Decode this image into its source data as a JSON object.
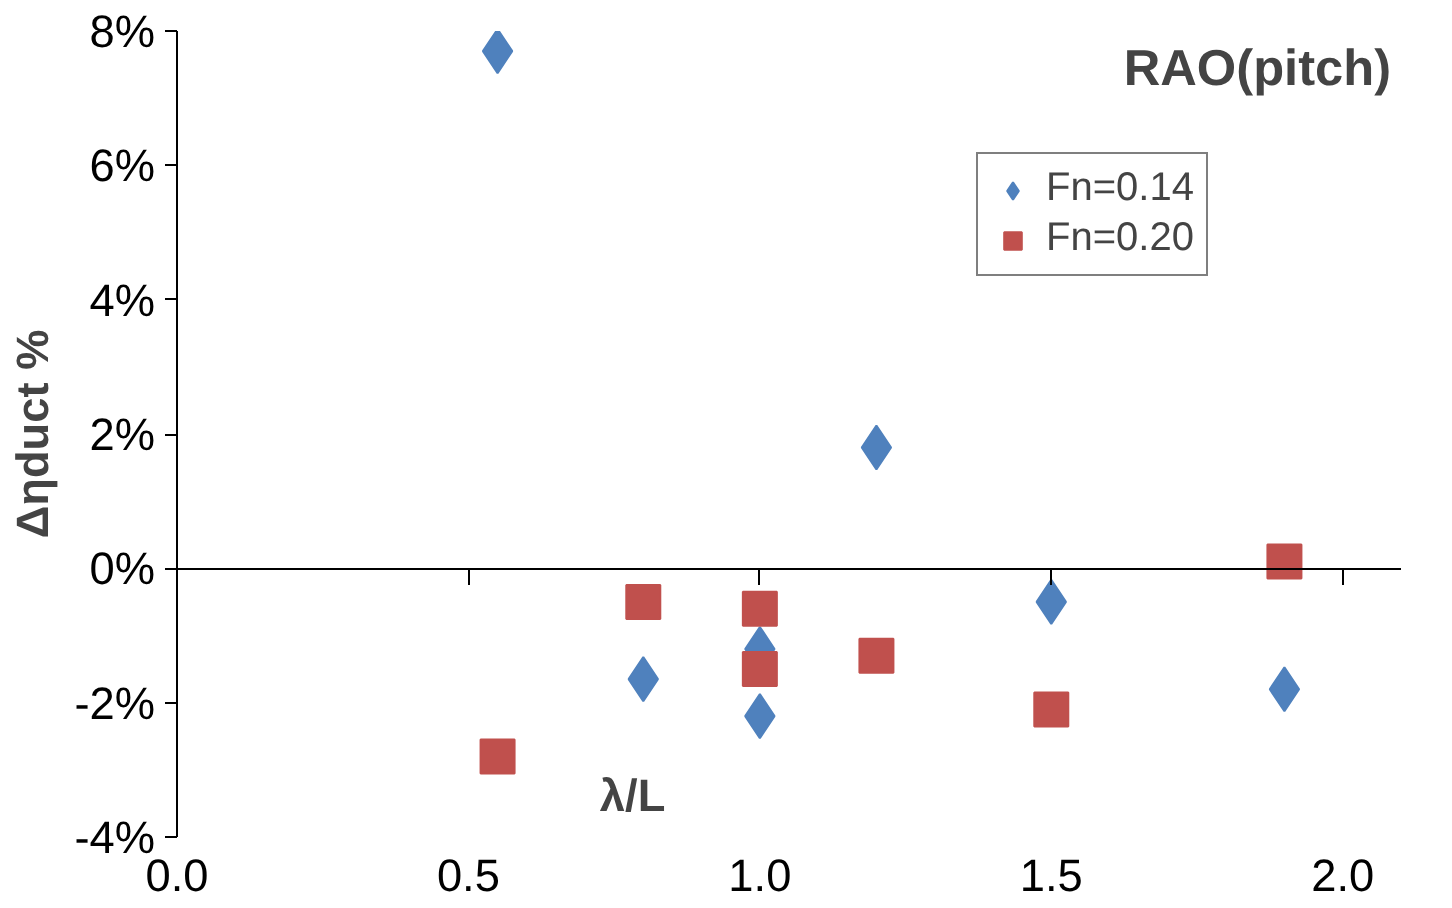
{
  "chart_data": {
    "type": "scatter",
    "title": "RAO(pitch)",
    "xlabel": "λ/L",
    "ylabel": "Δηduct %",
    "xlim": [
      0,
      2.1
    ],
    "xticks": [
      {
        "value": 0,
        "label": "0.0"
      },
      {
        "value": 0.5,
        "label": "0.5"
      },
      {
        "value": 1,
        "label": "1.0"
      },
      {
        "value": 1.5,
        "label": "1.5"
      },
      {
        "value": 2,
        "label": "2.0"
      }
    ],
    "ylim": [
      -4,
      8
    ],
    "yticks": [
      {
        "value": -4,
        "label": "-4%"
      },
      {
        "value": -2,
        "label": "-2%"
      },
      {
        "value": 0,
        "label": "0%"
      },
      {
        "value": 2,
        "label": "2%"
      },
      {
        "value": 4,
        "label": "4%"
      },
      {
        "value": 6,
        "label": "6%"
      },
      {
        "value": 8,
        "label": "8%"
      }
    ],
    "legend": "top right",
    "series": [
      {
        "name": "Fn=0.14",
        "color": "#4f81bd",
        "marker": "diamond",
        "x": [
          0.55,
          0.8,
          1.0,
          1.0,
          1.2,
          1.5,
          1.9
        ],
        "values": [
          7.7,
          -1.65,
          -2.2,
          -1.2,
          1.8,
          -0.5,
          -1.8
        ]
      },
      {
        "name": "Fn=0.20",
        "color": "#c0504d",
        "marker": "square",
        "x": [
          0.55,
          0.8,
          1.0,
          1.0,
          1.2,
          1.5,
          1.9
        ],
        "values": [
          -2.8,
          -0.5,
          -0.6,
          -1.5,
          -1.3,
          -2.1,
          0.1
        ]
      }
    ]
  }
}
